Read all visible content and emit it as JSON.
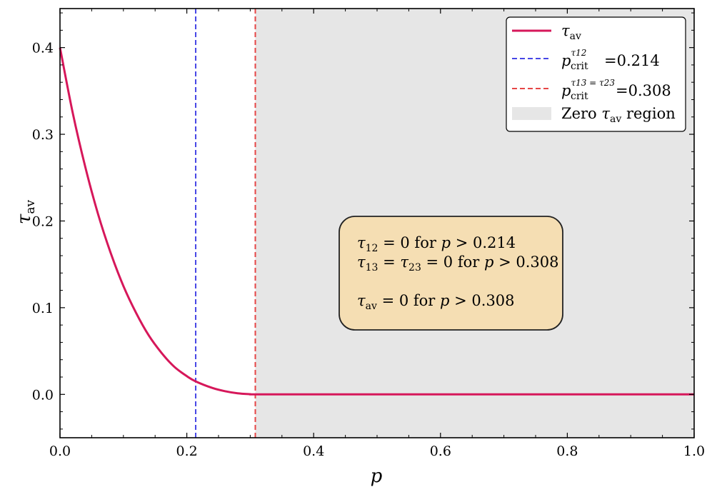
{
  "chart_data": {
    "type": "line",
    "xlabel": "p",
    "ylabel": "τav",
    "xlim": [
      0.0,
      1.0
    ],
    "ylim": [
      -0.05,
      0.445
    ],
    "x_ticks": [
      0.0,
      0.2,
      0.4,
      0.6,
      0.8,
      1.0
    ],
    "x_tick_labels": [
      "0.0",
      "0.2",
      "0.4",
      "0.6",
      "0.8",
      "1.0"
    ],
    "y_ticks": [
      0.0,
      0.1,
      0.2,
      0.3,
      0.4
    ],
    "y_tick_labels": [
      "0.0",
      "0.1",
      "0.2",
      "0.3",
      "0.4"
    ],
    "grid": false,
    "legend_position": "top-right",
    "series": [
      {
        "name": "τav",
        "color": "#d6175a",
        "style": "solid",
        "x": [
          0.0,
          0.02,
          0.04,
          0.06,
          0.08,
          0.1,
          0.12,
          0.14,
          0.16,
          0.18,
          0.2,
          0.214,
          0.24,
          0.26,
          0.28,
          0.3,
          0.308,
          0.4,
          0.5,
          0.6,
          0.7,
          0.8,
          0.9,
          1.0
        ],
        "y": [
          0.4,
          0.325,
          0.262,
          0.208,
          0.163,
          0.125,
          0.094,
          0.068,
          0.048,
          0.032,
          0.021,
          0.015,
          0.0075,
          0.0037,
          0.0013,
          0.0002,
          0.0,
          0.0,
          0.0,
          0.0,
          0.0,
          0.0,
          0.0,
          0.0
        ]
      }
    ],
    "vlines": [
      {
        "name": "p_crit^τ12 = 0.214",
        "x": 0.214,
        "color": "#4646e6",
        "style": "dashed"
      },
      {
        "name": "p_crit^τ13=τ23 = 0.308",
        "x": 0.308,
        "color": "#e64646",
        "style": "dashed"
      }
    ],
    "shaded_region": {
      "name": "Zero τav region",
      "x_start": 0.308,
      "x_end": 1.0,
      "color": "#e6e6e6"
    },
    "legend": {
      "entries": [
        {
          "label_main": "τ",
          "label_sub": "av",
          "label_sup": "",
          "label_value": ""
        },
        {
          "label_main": "p",
          "label_sub": "crit",
          "label_sup": "τ12",
          "label_value": "=0.214"
        },
        {
          "label_main": "p",
          "label_sub": "crit",
          "label_sup": "τ13 = τ23",
          "label_value": "=0.308"
        },
        {
          "label_main": "Zero ",
          "label_tau": "τ",
          "label_sub": "av",
          "label_value": " region"
        }
      ]
    },
    "annotation": {
      "background": "#f5deb3",
      "lines": [
        [
          "τ",
          "12",
          " = 0 for ",
          "p",
          " > 0.214"
        ],
        [
          "τ",
          "13",
          " = ",
          "τ",
          "23",
          " = 0 for ",
          "p",
          " > 0.308"
        ],
        [
          "τ",
          "av",
          " = 0 for ",
          "p",
          " > 0.308"
        ]
      ]
    }
  }
}
